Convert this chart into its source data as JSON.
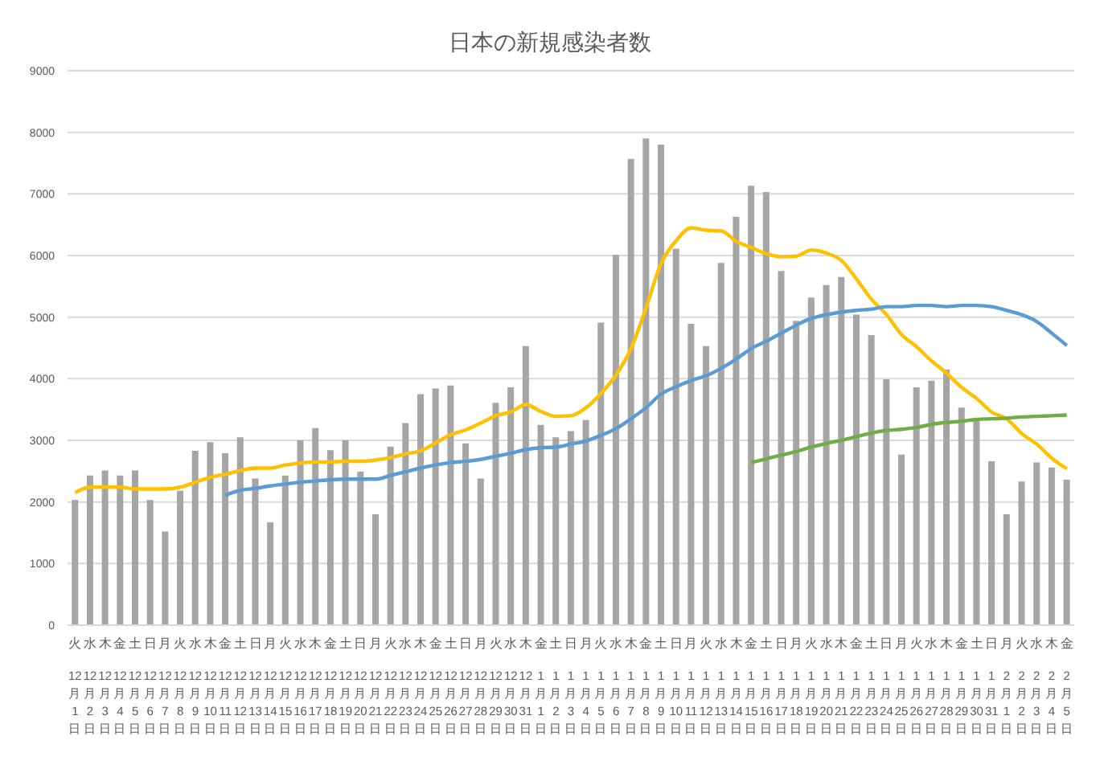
{
  "chart_data": {
    "type": "bar",
    "title": "日本の新規感染者数",
    "categories": [
      "火 12月1日",
      "水 12月2日",
      "木 12月3日",
      "金 12月4日",
      "土 12月5日",
      "日 12月6日",
      "月 12月7日",
      "火 12月8日",
      "水 12月9日",
      "木 12月10日",
      "金 12月11日",
      "土 12月12日",
      "日 12月13日",
      "月 12月14日",
      "火 12月15日",
      "水 12月16日",
      "木 12月17日",
      "金 12月18日",
      "土 12月19日",
      "日 12月20日",
      "月 12月21日",
      "火 12月22日",
      "水 12月23日",
      "木 12月24日",
      "金 12月25日",
      "土 12月26日",
      "日 12月27日",
      "月 12月28日",
      "火 12月29日",
      "水 12月30日",
      "木 12月31日",
      "金 1月1日",
      "土 1月2日",
      "日 1月3日",
      "月 1月4日",
      "火 1月5日",
      "水 1月6日",
      "木 1月7日",
      "金 1月8日",
      "土 1月9日",
      "日 1月10日",
      "月 1月11日",
      "火 1月12日",
      "水 1月13日",
      "木 1月14日",
      "金 1月15日",
      "土 1月16日",
      "日 1月17日",
      "月 1月18日",
      "火 1月19日",
      "水 1月20日",
      "木 1月21日",
      "金 1月22日",
      "土 1月23日",
      "日 1月24日",
      "月 1月25日",
      "火 1月26日",
      "水 1月27日",
      "木 1月28日",
      "金 1月29日",
      "土 1月30日",
      "日 1月31日",
      "月 2月1日",
      "火 2月2日",
      "水 2月3日",
      "木 2月4日",
      "金 2月5日"
    ],
    "series": [
      {
        "color": "#a5a5a5",
        "values": [
          2030,
          2430,
          2510,
          2430,
          2510,
          2030,
          1520,
          2180,
          2830,
          2970,
          2790,
          3050,
          2380,
          1670,
          2430,
          3000,
          3200,
          2840,
          3000,
          2490,
          1800,
          2900,
          3280,
          3750,
          3840,
          3890,
          2950,
          2380,
          3610,
          3860,
          4530,
          3250,
          3050,
          3150,
          3330,
          4910,
          6010,
          7570,
          7900,
          7800,
          6110,
          4890,
          4530,
          5880,
          6630,
          7130,
          7030,
          5750,
          4940,
          5320,
          5520,
          5650,
          5040,
          4710,
          3990,
          2770,
          3860,
          3970,
          4150,
          3530,
          3330,
          2660,
          1800,
          2330,
          2640,
          2560,
          2360
        ]
      },
      {
        "type": "line",
        "color": "#ffc000",
        "values": [
          2150,
          2240,
          2240,
          2240,
          2210,
          2210,
          2210,
          2240,
          2320,
          2400,
          2450,
          2510,
          2550,
          2550,
          2600,
          2630,
          2650,
          2650,
          2660,
          2660,
          2680,
          2720,
          2780,
          2830,
          2960,
          3090,
          3170,
          3280,
          3400,
          3460,
          3580,
          3470,
          3390,
          3400,
          3530,
          3760,
          4060,
          4490,
          5150,
          5870,
          6240,
          6450,
          6410,
          6400,
          6230,
          6130,
          6030,
          5980,
          5990,
          6090,
          6040,
          5920,
          5620,
          5290,
          5040,
          4720,
          4520,
          4290,
          4090,
          3860,
          3680,
          3460,
          3350,
          3110,
          2940,
          2710,
          2540
        ]
      },
      {
        "type": "line",
        "color": "#5b9bd5",
        "values": [
          null,
          null,
          null,
          null,
          null,
          null,
          null,
          null,
          null,
          null,
          2110,
          2190,
          2220,
          2260,
          2290,
          2320,
          2340,
          2360,
          2370,
          2370,
          2370,
          2430,
          2490,
          2550,
          2600,
          2640,
          2660,
          2690,
          2740,
          2790,
          2850,
          2880,
          2890,
          2940,
          2990,
          3080,
          3190,
          3350,
          3530,
          3750,
          3870,
          3970,
          4050,
          4170,
          4320,
          4490,
          4610,
          4740,
          4870,
          4980,
          5040,
          5080,
          5110,
          5130,
          5170,
          5170,
          5190,
          5190,
          5170,
          5190,
          5190,
          5170,
          5110,
          5040,
          4930,
          4740,
          4540
        ]
      },
      {
        "type": "line",
        "color": "#70ad47",
        "values": [
          null,
          null,
          null,
          null,
          null,
          null,
          null,
          null,
          null,
          null,
          null,
          null,
          null,
          null,
          null,
          null,
          null,
          null,
          null,
          null,
          null,
          null,
          null,
          null,
          null,
          null,
          null,
          null,
          null,
          null,
          null,
          null,
          null,
          null,
          null,
          null,
          null,
          null,
          null,
          null,
          null,
          null,
          null,
          null,
          null,
          2640,
          2700,
          2760,
          2820,
          2890,
          2950,
          3000,
          3060,
          3120,
          3160,
          3180,
          3210,
          3260,
          3290,
          3310,
          3340,
          3350,
          3360,
          3380,
          3390,
          3400,
          3410
        ]
      }
    ],
    "ylim": [
      0,
      9000
    ],
    "yticks": [
      0,
      1000,
      2000,
      3000,
      4000,
      5000,
      6000,
      7000,
      8000,
      9000
    ],
    "grid": "y",
    "legend": false,
    "marker": "none"
  }
}
